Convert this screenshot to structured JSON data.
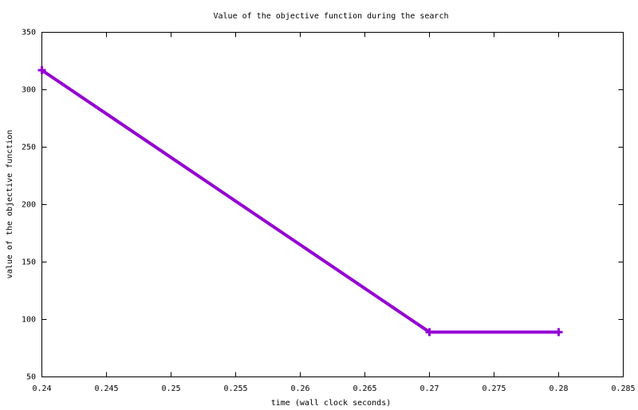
{
  "chart_data": {
    "type": "line",
    "title": "Value of the objective function during the search",
    "x_label": "time (wall clock seconds)",
    "y_label": "value of the objective function",
    "x": [
      0.24,
      0.27,
      0.28
    ],
    "series": [
      {
        "color": "#9400d3",
        "values": [
          317,
          89,
          89
        ]
      }
    ],
    "xlim": [
      0.24,
      0.285
    ],
    "xticks": [
      0.24,
      0.245,
      0.25,
      0.255,
      0.26,
      0.265,
      0.27,
      0.275,
      0.28,
      0.285
    ],
    "ylim": [
      50,
      350
    ],
    "yticks": [
      50,
      100,
      150,
      200,
      250,
      300,
      350
    ],
    "grid": false
  }
}
